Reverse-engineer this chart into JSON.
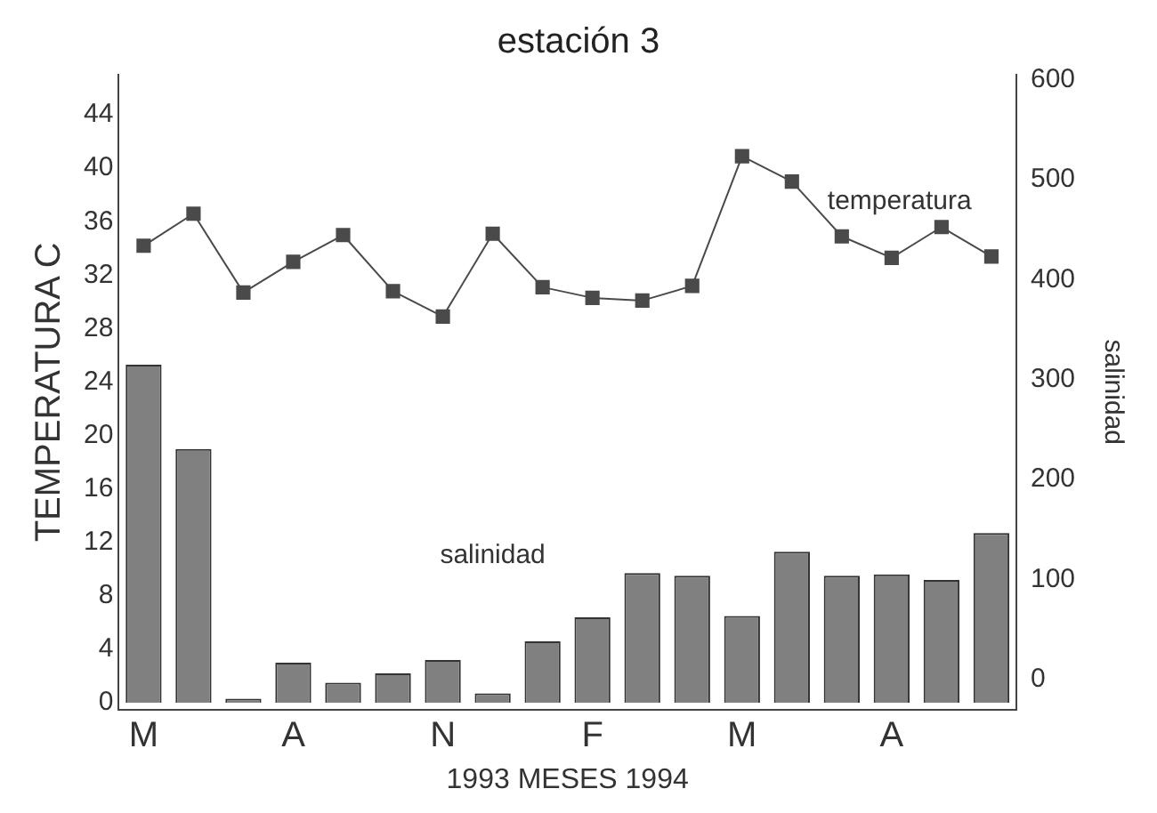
{
  "chart_data": {
    "type": "bar",
    "title": "estación 3",
    "xlabel": "1993 MESES 1994",
    "ylabel": "TEMPERATURA C",
    "y2label": "salinidad",
    "categories": [
      "M",
      null,
      null,
      "A",
      null,
      null,
      "N",
      null,
      null,
      "F",
      null,
      null,
      "M",
      null,
      null,
      "A",
      null,
      null
    ],
    "series": [
      {
        "name": "salinidad",
        "color": "#808080",
        "values": [
          25.3,
          19.0,
          0.3,
          3.0,
          1.5,
          2.2,
          3.2,
          0.7,
          4.6,
          6.4,
          9.7,
          9.5,
          6.5,
          11.3,
          9.5,
          9.6,
          9.2,
          12.7
        ]
      },
      {
        "name": "temperatura",
        "type": "line",
        "color": "#4a4a4a",
        "marker": "square",
        "values": [
          34.2,
          36.6,
          30.7,
          33.0,
          35.0,
          30.8,
          28.9,
          35.1,
          31.1,
          30.3,
          30.1,
          31.2,
          40.9,
          39.0,
          34.9,
          33.3,
          35.6,
          33.4
        ]
      }
    ],
    "ylim": [
      -0.5,
      47
    ],
    "yticks": [
      0,
      4,
      8,
      12,
      16,
      20,
      24,
      28,
      32,
      36,
      40,
      44
    ],
    "y2lim": [
      -30,
      605
    ],
    "y2ticks": [
      0,
      100,
      200,
      300,
      400,
      500,
      600
    ],
    "grid": false,
    "legend": false
  }
}
